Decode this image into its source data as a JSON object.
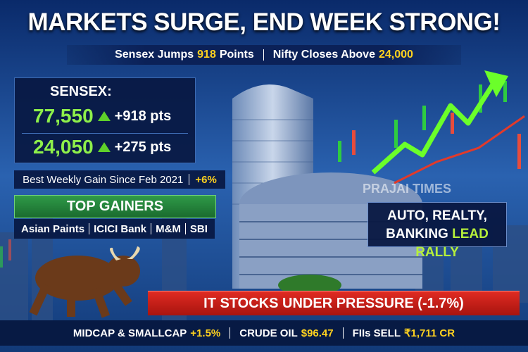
{
  "header": {
    "title": "MARKETS SURGE, END WEEK STRONG!",
    "subtitle": {
      "sensex_text": "Sensex Jumps",
      "sensex_points": "918",
      "sensex_unit": "Points",
      "nifty_text": "Nifty Closes Above",
      "nifty_level": "24,000"
    }
  },
  "index_box": {
    "label": "SENSEX:",
    "rows": [
      {
        "level": "77,550",
        "change": "+918 pts"
      },
      {
        "level": "24,050",
        "change": "+275 pts"
      }
    ]
  },
  "weekly_gain": {
    "text": "Best Weekly Gain Since Feb 2021",
    "value": "+6%"
  },
  "top_gainers": {
    "title": "TOP GAINERS",
    "stocks": [
      "Asian Paints",
      "ICICI Bank",
      "M&M",
      "SBI"
    ]
  },
  "watermark": "PRAJAI TIMES",
  "sector_box": {
    "line1": "AUTO, REALTY,",
    "line2": "BANKING",
    "highlight": "LEAD RALLY"
  },
  "alert_banner": "IT STOCKS UNDER PRESSURE (-1.7%)",
  "ticker": [
    {
      "label": "MIDCAP & SMALLCAP",
      "value": "+1.5%"
    },
    {
      "label": "CRUDE OIL",
      "value": "$96.47"
    },
    {
      "label": "FIIs SELL",
      "value": "₹1,711 CR"
    }
  ]
}
